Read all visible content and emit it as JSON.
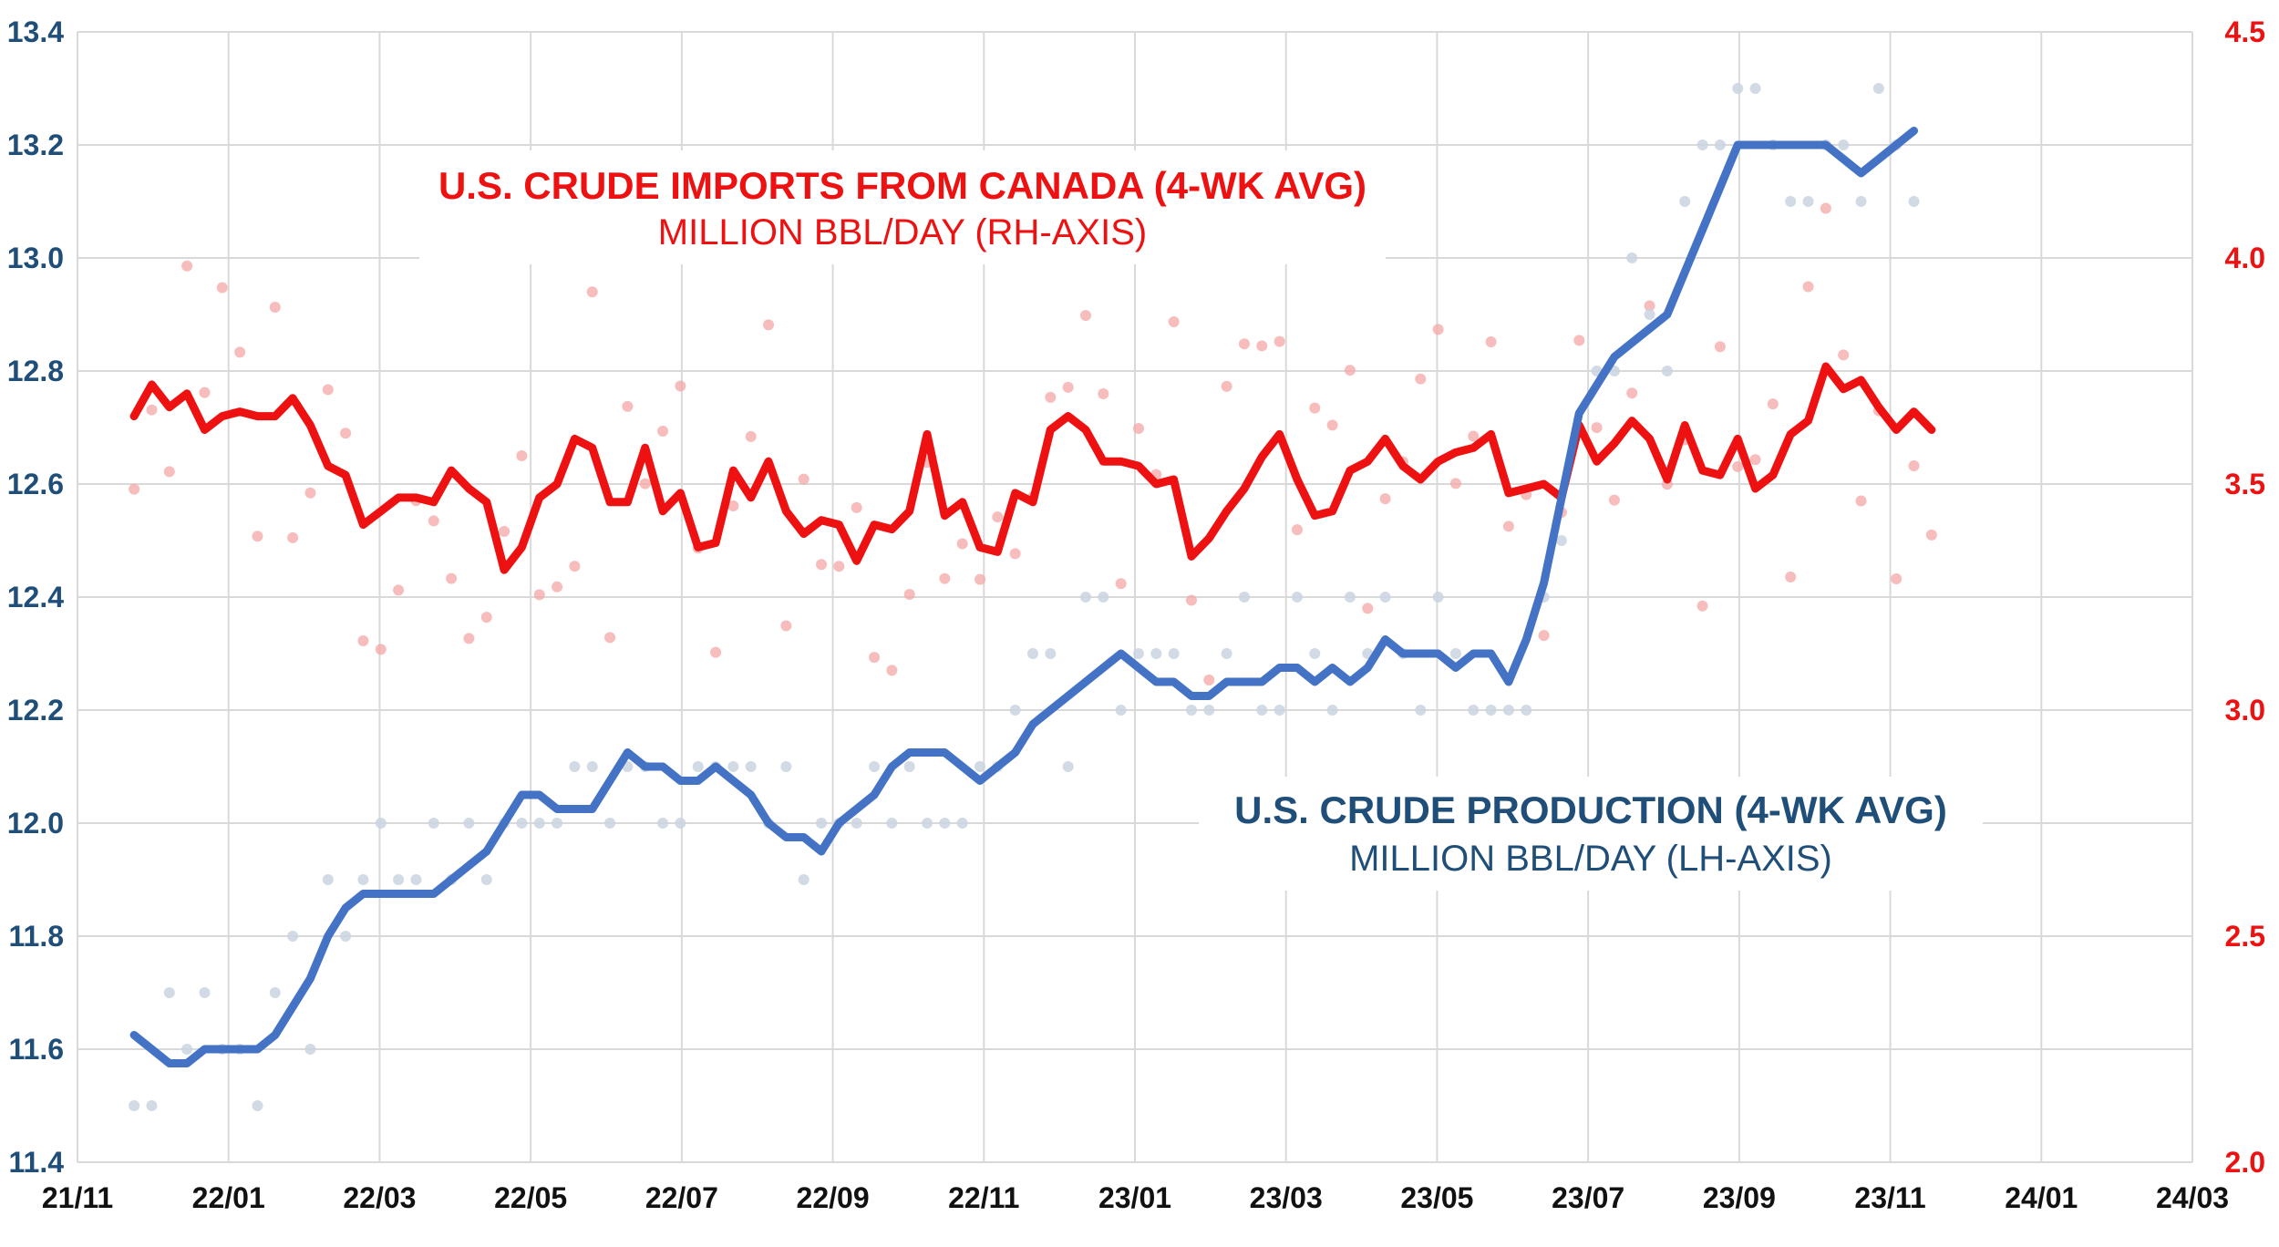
{
  "chart_data": {
    "type": "line",
    "grid": true,
    "x_ticks": [
      "21/11",
      "22/01",
      "22/03",
      "22/05",
      "22/07",
      "22/09",
      "22/11",
      "23/01",
      "23/03",
      "23/05",
      "23/07",
      "23/09",
      "23/11",
      "24/01",
      "24/03"
    ],
    "left_axis": {
      "ylim": [
        11.4,
        13.4
      ],
      "ticks": [
        "11.4",
        "11.6",
        "11.8",
        "12.0",
        "12.2",
        "12.4",
        "12.6",
        "12.8",
        "13.0",
        "13.2",
        "13.4"
      ],
      "color": "#1f4e79"
    },
    "right_axis": {
      "ylim": [
        2.0,
        4.5
      ],
      "ticks": [
        "2.0",
        "2.5",
        "3.0",
        "3.5",
        "4.0",
        "4.5"
      ],
      "color": "#ee1111"
    },
    "annotations": {
      "imports_title": "U.S. CRUDE IMPORTS FROM CANADA (4-WK AVG)",
      "imports_sub": "MILLION BBL/DAY (RH-AXIS)",
      "production_title": "U.S. CRUDE PRODUCTION (4-WK AVG)",
      "production_sub": "MILLION BBL/DAY (LH-AXIS)"
    },
    "series": [
      {
        "name": "U.S. Crude Imports from Canada (4-wk avg)",
        "axis": "right",
        "color": "#ee1111",
        "x_start": 0.75,
        "step_months": 0.2333,
        "values": [
          3.65,
          3.72,
          3.67,
          3.7,
          3.62,
          3.65,
          3.66,
          3.65,
          3.65,
          3.69,
          3.63,
          3.54,
          3.52,
          3.41,
          3.44,
          3.47,
          3.47,
          3.46,
          3.53,
          3.49,
          3.46,
          3.31,
          3.36,
          3.47,
          3.5,
          3.6,
          3.58,
          3.46,
          3.46,
          3.58,
          3.44,
          3.48,
          3.36,
          3.37,
          3.53,
          3.47,
          3.55,
          3.44,
          3.39,
          3.42,
          3.41,
          3.33,
          3.41,
          3.4,
          3.44,
          3.61,
          3.43,
          3.46,
          3.36,
          3.35,
          3.48,
          3.46,
          3.62,
          3.65,
          3.62,
          3.55,
          3.55,
          3.54,
          3.5,
          3.51,
          3.34,
          3.38,
          3.44,
          3.49,
          3.56,
          3.61,
          3.51,
          3.43,
          3.44,
          3.53,
          3.55,
          3.6,
          3.54,
          3.51,
          3.55,
          3.57,
          3.58,
          3.61,
          3.48,
          3.49,
          3.5,
          3.47,
          3.63,
          3.55,
          3.59,
          3.64,
          3.6,
          3.51,
          3.63,
          3.53,
          3.52,
          3.6,
          3.49,
          3.52,
          3.61,
          3.64,
          3.76,
          3.71,
          3.73,
          3.67,
          3.62,
          3.66,
          3.62
        ]
      },
      {
        "name": "U.S. Crude Production (4-wk avg)",
        "axis": "left",
        "color": "#4472c4",
        "x_start": 0.75,
        "step_months": 0.2333,
        "values": [
          11.625,
          11.6,
          11.575,
          11.575,
          11.6,
          11.6,
          11.6,
          11.6,
          11.625,
          11.675,
          11.725,
          11.8,
          11.85,
          11.875,
          11.875,
          11.875,
          11.875,
          11.875,
          11.9,
          11.925,
          11.95,
          12.0,
          12.05,
          12.05,
          12.025,
          12.025,
          12.025,
          12.075,
          12.125,
          12.1,
          12.1,
          12.075,
          12.075,
          12.1,
          12.075,
          12.05,
          12.0,
          11.975,
          11.975,
          11.95,
          12.0,
          12.025,
          12.05,
          12.1,
          12.125,
          12.125,
          12.125,
          12.1,
          12.075,
          12.1,
          12.125,
          12.175,
          12.2,
          12.225,
          12.25,
          12.275,
          12.3,
          12.275,
          12.25,
          12.25,
          12.225,
          12.225,
          12.25,
          12.25,
          12.25,
          12.275,
          12.275,
          12.25,
          12.275,
          12.25,
          12.275,
          12.325,
          12.3,
          12.3,
          12.3,
          12.275,
          12.3,
          12.3,
          12.25,
          12.325,
          12.425,
          12.575,
          12.725,
          12.775,
          12.825,
          12.85,
          12.875,
          12.9,
          12.975,
          13.05,
          13.125,
          13.2,
          13.2,
          13.2,
          13.2,
          13.2,
          13.2,
          13.175,
          13.15,
          13.175,
          13.2,
          13.225
        ]
      }
    ]
  }
}
